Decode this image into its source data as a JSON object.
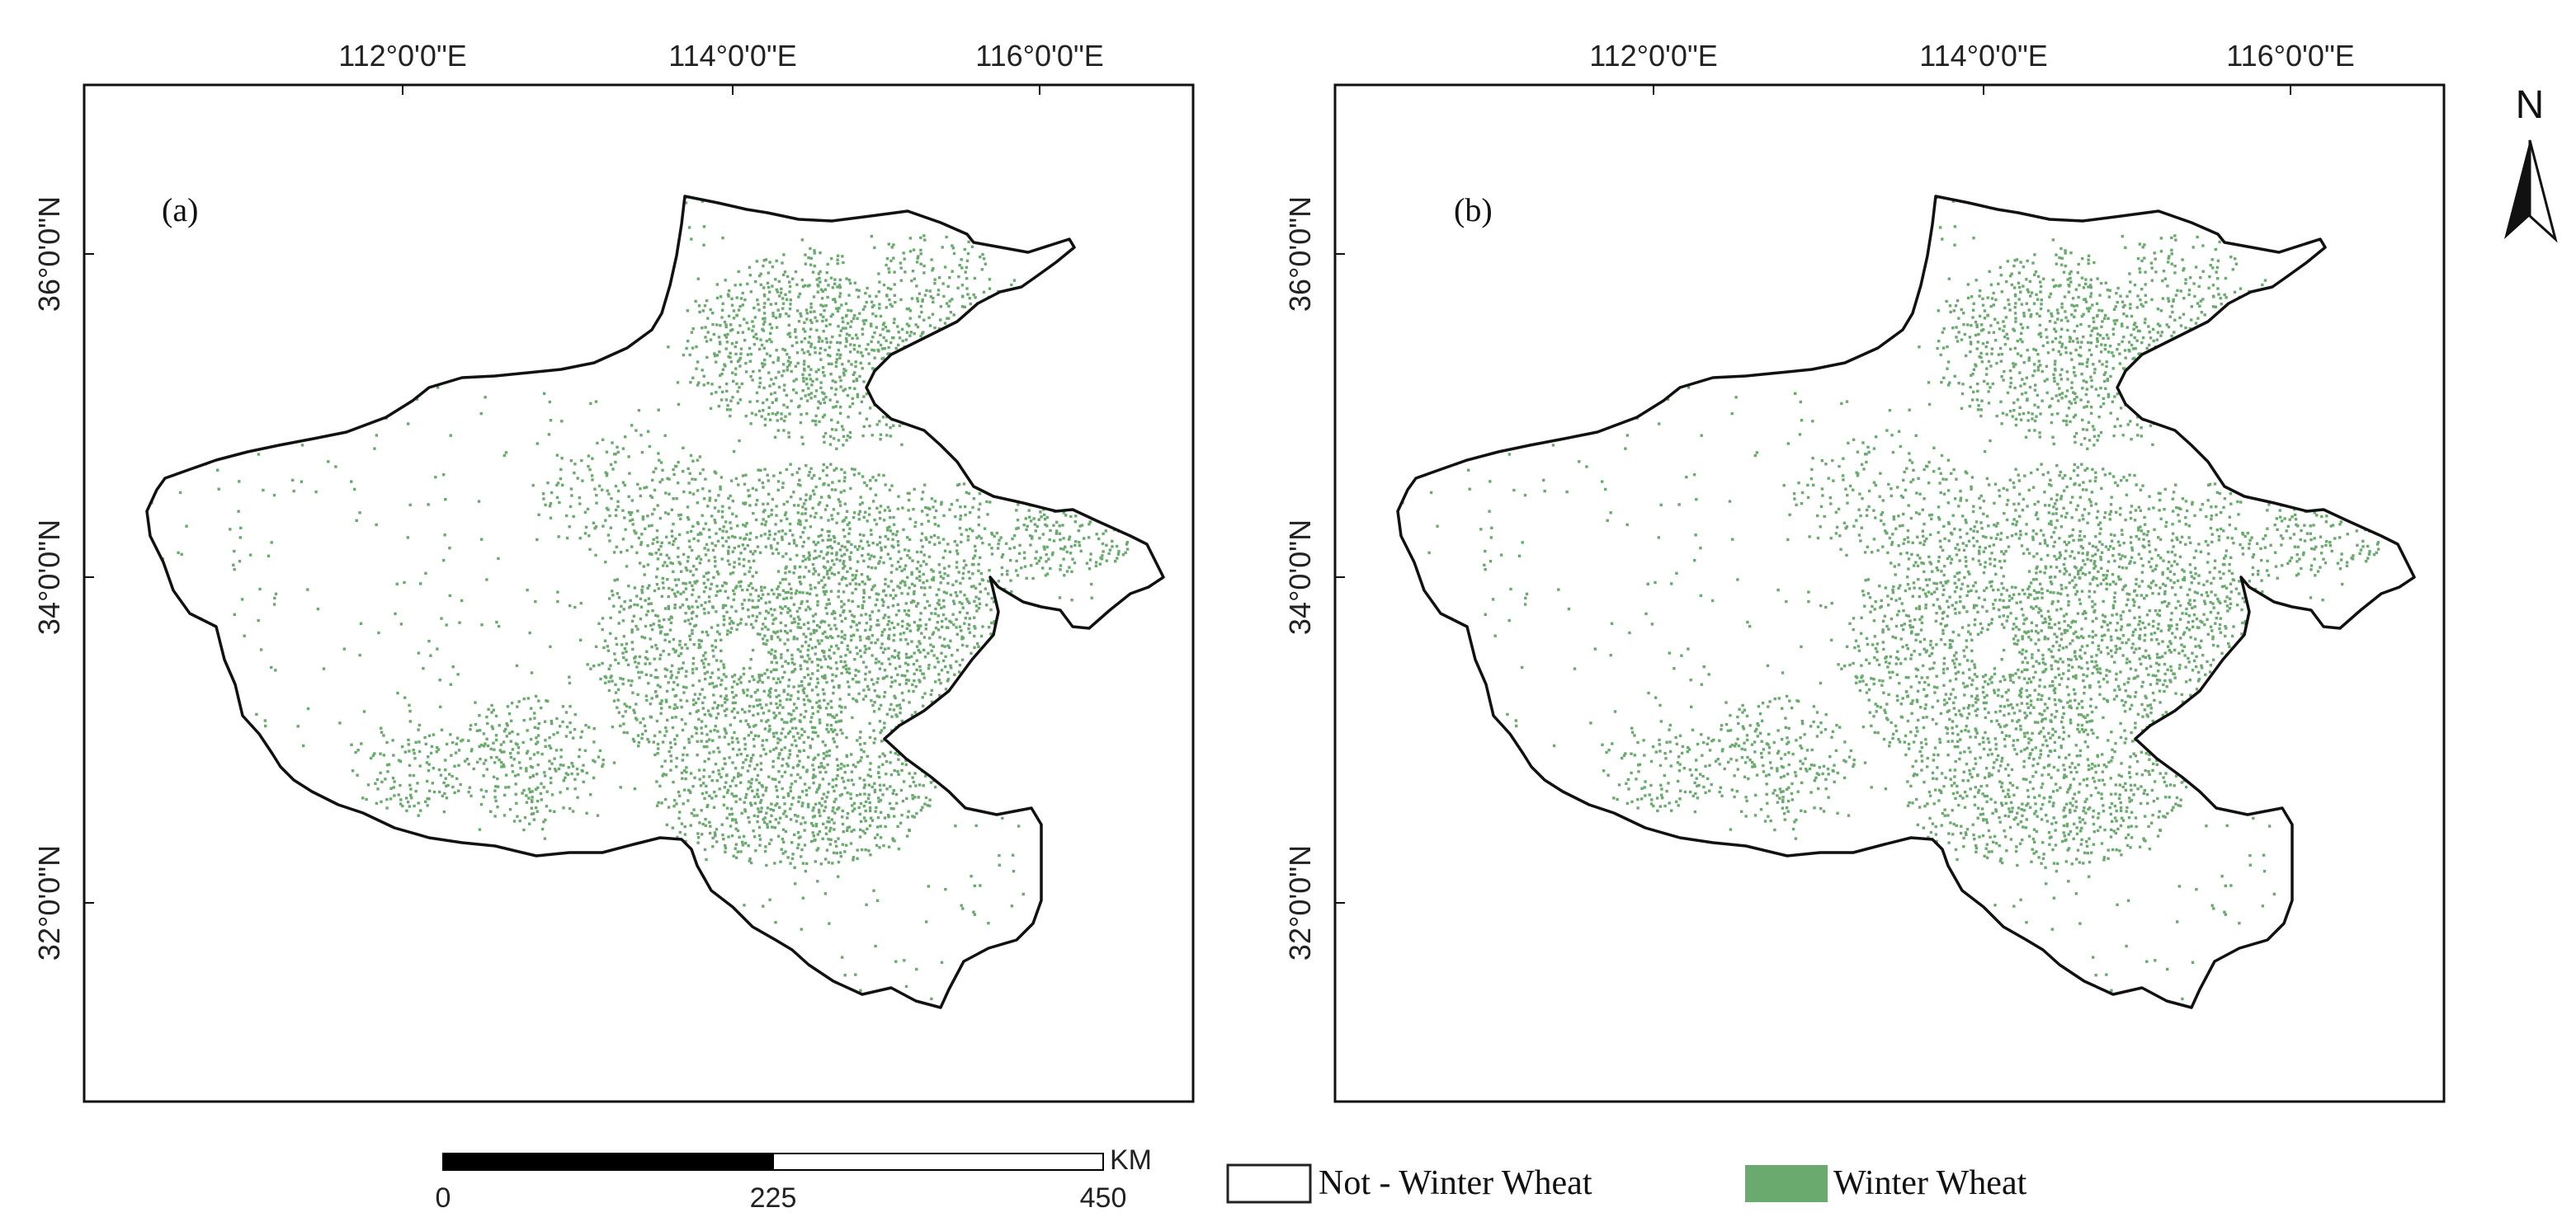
{
  "panels": [
    {
      "label": "(a)",
      "lon_ticks": [
        "112°0'0\"E",
        "114°0'0\"E",
        "116°0'0\"E"
      ],
      "lat_ticks": [
        "36°0'0\"N",
        "34°0'0\"N",
        "32°0'0\"N"
      ]
    },
    {
      "label": "(b)",
      "lon_ticks": [
        "112°0'0\"E",
        "114°0'0\"E",
        "116°0'0\"E"
      ],
      "lat_ticks": [
        "36°0'0\"N",
        "34°0'0\"N",
        "32°0'0\"N"
      ]
    }
  ],
  "scale_bar": {
    "unit": "KM",
    "labels": [
      "0",
      "225",
      "450"
    ]
  },
  "legend": {
    "items": [
      {
        "label": "Not - Winter Wheat",
        "color": "#ffffff"
      },
      {
        "label": "Winter Wheat",
        "color": "#6aaa6e"
      }
    ]
  },
  "north_arrow": {
    "label": "N"
  },
  "colors": {
    "wheat": "#6aaa6e",
    "boundary": "#111111",
    "frame": "#111111"
  }
}
